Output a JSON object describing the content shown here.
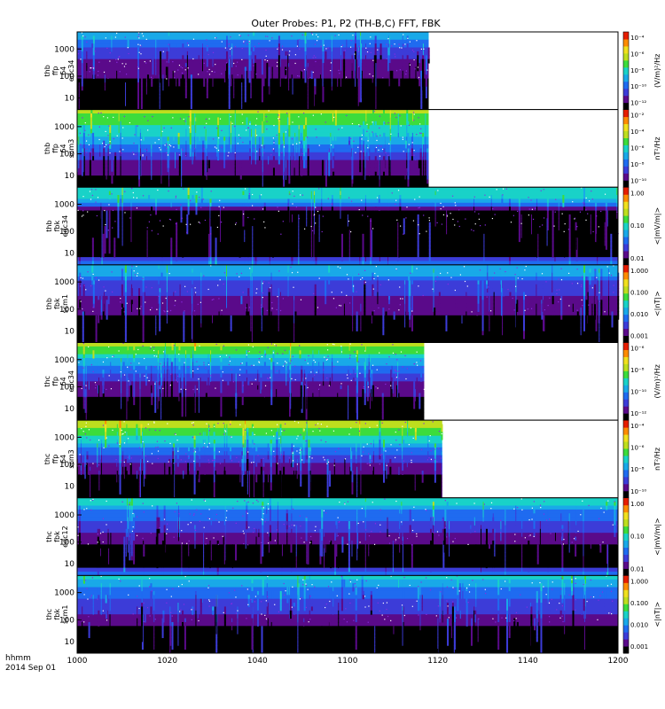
{
  "title": "Outer Probes: P1, P2 (TH-B,C) FFT, FBK",
  "chart_data": {
    "type": "heatmap",
    "title": "Outer Probes: P1, P2 (TH-B,C) FFT, FBK",
    "x_tick_labels": [
      "1000",
      "1020",
      "1040",
      "1100",
      "1120",
      "1140",
      "1200"
    ],
    "x_time_label": "hhmm",
    "x_date_label": "2014 Sep 01",
    "colormap": [
      "#000000",
      "#5a0a8a",
      "#3c3cd8",
      "#1f6bf0",
      "#19a9e8",
      "#19d2c8",
      "#3cdc3c",
      "#bede1e",
      "#f0e01e",
      "#ff8c00",
      "#e61e00"
    ],
    "panels": [
      {
        "ylabel_lines": [
          "thb",
          "ffp",
          "64",
          "edc34"
        ],
        "y_tick_labels": [
          "1000",
          "100",
          "10"
        ],
        "cbar_label": "(V/m)²/Hz",
        "cbar_ticks": [
          "10⁻⁴",
          "10⁻⁶",
          "10⁻⁸",
          "10⁻¹⁰",
          "10⁻¹²"
        ],
        "data_end_label": "1118",
        "levels": [
          0.42,
          0.35,
          0.3,
          0.25,
          0.22,
          0.18,
          0.15,
          0.12,
          0.1,
          0.08,
          0.06,
          0.05,
          0.04,
          0.03,
          0.0,
          0.0,
          0.0,
          0.0,
          0.0,
          0.0
        ]
      },
      {
        "ylabel_lines": [
          "thb",
          "ffp",
          "64",
          "scm3"
        ],
        "y_tick_labels": [
          "1000",
          "100",
          "10"
        ],
        "cbar_label": "nT²/Hz",
        "cbar_ticks": [
          "10⁻²",
          "10⁻⁴",
          "10⁻⁶",
          "10⁻⁸",
          "10⁻¹⁰"
        ],
        "data_end_label": "1118",
        "levels": [
          0.65,
          0.62,
          0.58,
          0.55,
          0.52,
          0.48,
          0.45,
          0.42,
          0.38,
          0.3,
          0.25,
          0.2,
          0.15,
          0.1,
          0.1,
          0.08,
          0.06,
          0.03,
          0.0,
          0.0
        ]
      },
      {
        "ylabel_lines": [
          "thb",
          "fbk",
          "edc34"
        ],
        "y_tick_labels": [
          "1000",
          "100",
          "10"
        ],
        "cbar_label": "<|mV/m|>",
        "cbar_ticks": [
          "1.00",
          "0.10",
          "0.01"
        ],
        "data_end_label": "1200",
        "levels": [
          0.5,
          0.52,
          0.45,
          0.38,
          0.3,
          0.1,
          0.02,
          0.02,
          0.02,
          0.02,
          0.02,
          0.02,
          0.02,
          0.02,
          0.02,
          0.02,
          0.02,
          0.02,
          0.18,
          0.28
        ]
      },
      {
        "ylabel_lines": [
          "thb",
          "fbk",
          "scm1"
        ],
        "y_tick_labels": [
          "1000",
          "100",
          "10"
        ],
        "cbar_label": "<|nT|>",
        "cbar_ticks": [
          "1.000",
          "0.100",
          "0.010",
          "0.001"
        ],
        "data_end_label": "1200",
        "levels": [
          0.42,
          0.4,
          0.35,
          0.28,
          0.22,
          0.18,
          0.18,
          0.16,
          0.14,
          0.12,
          0.1,
          0.1,
          0.08,
          0.04,
          0.04,
          0.03,
          0.03,
          0.02,
          0.02,
          0.02
        ]
      },
      {
        "ylabel_lines": [
          "thc",
          "ffp",
          "64",
          "edc34"
        ],
        "y_tick_labels": [
          "1000",
          "100",
          "10"
        ],
        "cbar_label": "(V/m)²/Hz",
        "cbar_ticks": [
          "10⁻⁶",
          "10⁻⁸",
          "10⁻¹⁰",
          "10⁻¹²"
        ],
        "data_end_label": "1117",
        "levels": [
          0.72,
          0.62,
          0.55,
          0.48,
          0.42,
          0.35,
          0.3,
          0.26,
          0.22,
          0.18,
          0.14,
          0.12,
          0.1,
          0.08,
          0.0,
          0.0,
          0.0,
          0.0,
          0.0,
          0.0
        ]
      },
      {
        "ylabel_lines": [
          "thc",
          "ffp",
          "64",
          "scm3"
        ],
        "y_tick_labels": [
          "1000",
          "100",
          "10"
        ],
        "cbar_label": "nT²/Hz",
        "cbar_ticks": [
          "10⁻⁴",
          "10⁻⁶",
          "10⁻⁸",
          "10⁻¹⁰"
        ],
        "data_end_label": "1121",
        "levels": [
          0.72,
          0.66,
          0.6,
          0.55,
          0.5,
          0.45,
          0.4,
          0.34,
          0.28,
          0.22,
          0.18,
          0.14,
          0.1,
          0.06,
          0.04,
          0.03,
          0.0,
          0.0,
          0.0,
          0.0
        ]
      },
      {
        "ylabel_lines": [
          "thc",
          "fbk",
          "edc12"
        ],
        "y_tick_labels": [
          "1000",
          "100",
          "10"
        ],
        "cbar_label": "<|mV/m|>",
        "cbar_ticks": [
          "1.00",
          "0.10",
          "0.01"
        ],
        "data_end_label": "1200",
        "levels": [
          0.48,
          0.45,
          0.38,
          0.3,
          0.28,
          0.25,
          0.22,
          0.2,
          0.15,
          0.1,
          0.08,
          0.05,
          0.04,
          0.04,
          0.04,
          0.03,
          0.03,
          0.02,
          0.2,
          0.28
        ]
      },
      {
        "ylabel_lines": [
          "thc",
          "fbk",
          "scm1"
        ],
        "y_tick_labels": [
          "1000",
          "100",
          "10"
        ],
        "cbar_label": "<|nT|>",
        "cbar_ticks": [
          "1.000",
          "0.100",
          "0.010",
          "0.001"
        ],
        "data_end_label": "1200",
        "levels": [
          0.45,
          0.42,
          0.38,
          0.32,
          0.28,
          0.25,
          0.22,
          0.2,
          0.18,
          0.15,
          0.12,
          0.1,
          0.06,
          0.02,
          0.02,
          0.02,
          0.02,
          0.02,
          0.02,
          0.02
        ]
      }
    ]
  }
}
